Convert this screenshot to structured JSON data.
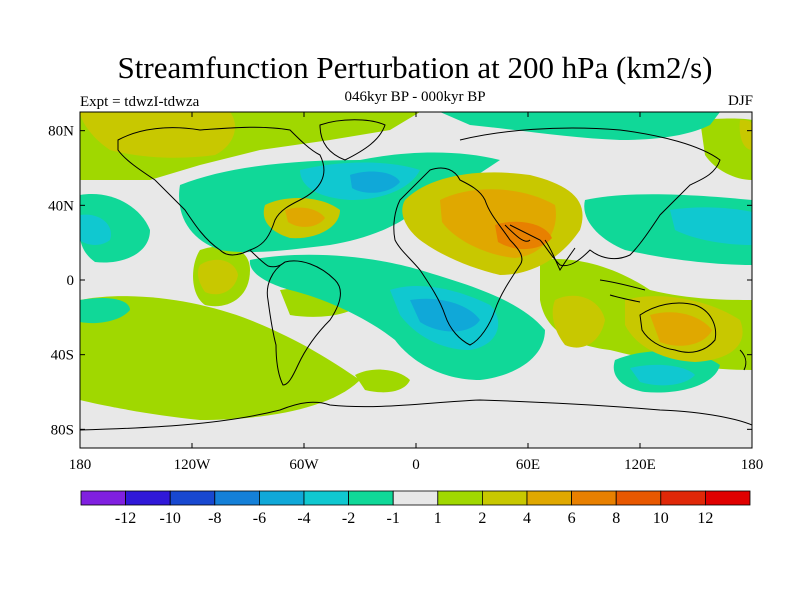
{
  "title": "Streamfunction Perturbation at 200 hPa (km2/s)",
  "subtitle": "046kyr BP - 000kyr BP",
  "experiment": "Expt = tdwzI-tdwza",
  "season": "DJF",
  "axes": {
    "lat_labels": [
      "80N",
      "40N",
      "0",
      "40S",
      "80S"
    ],
    "lat_values": [
      80,
      40,
      0,
      -40,
      -80
    ],
    "lon_labels": [
      "180",
      "120W",
      "60W",
      "0",
      "60E",
      "120E",
      "180"
    ],
    "lon_values": [
      -180,
      -120,
      -60,
      0,
      60,
      120,
      180
    ]
  },
  "colorbar": {
    "labels": [
      "-12",
      "-10",
      "-8",
      "-6",
      "-4",
      "-2",
      "-1",
      "1",
      "2",
      "4",
      "6",
      "8",
      "10",
      "12"
    ],
    "colors": [
      "#8020e0",
      "#3018d8",
      "#1848d0",
      "#1480d8",
      "#10a8d8",
      "#10c8d0",
      "#10d898",
      "#e8e8e8",
      "#a0d800",
      "#c8c800",
      "#e0a800",
      "#e88000",
      "#e85800",
      "#e02808",
      "#e00000"
    ]
  },
  "chart_data": {
    "type": "contour-map",
    "title": "Streamfunction Perturbation at 200 hPa (km2/s)",
    "subtitle": "046kyr BP - 000kyr BP",
    "season": "DJF",
    "lon_range": [
      -180,
      180
    ],
    "lat_range": [
      -90,
      90
    ],
    "levels": [
      -12,
      -10,
      -8,
      -6,
      -4,
      -2,
      -1,
      1,
      2,
      4,
      6,
      8,
      10,
      12
    ],
    "features": [
      {
        "name": "arabian-india-high",
        "lon": 60,
        "lat": 22,
        "value": 7
      },
      {
        "name": "north-africa-high",
        "lon": 35,
        "lat": 30,
        "value": 4
      },
      {
        "name": "north-atlantic-low",
        "lon": -20,
        "lat": 50,
        "value": -6
      },
      {
        "name": "caribbean-high",
        "lon": -60,
        "lat": 30,
        "value": 5
      },
      {
        "name": "australia-high",
        "lon": 150,
        "lat": -25,
        "value": 5
      },
      {
        "name": "indian-ocean-high",
        "lon": 90,
        "lat": -25,
        "value": 4
      },
      {
        "name": "south-atlantic-low",
        "lon": 0,
        "lat": -10,
        "value": -4
      },
      {
        "name": "west-pacific-low",
        "lon": 125,
        "lat": 30,
        "value": -4
      },
      {
        "name": "east-pacific-low",
        "lon": -165,
        "lat": 30,
        "value": -3
      },
      {
        "name": "southern-indian-low",
        "lon": 95,
        "lat": -50,
        "value": -3
      },
      {
        "name": "east-pacific-high",
        "lon": -120,
        "lat": 5,
        "value": 4
      }
    ]
  }
}
